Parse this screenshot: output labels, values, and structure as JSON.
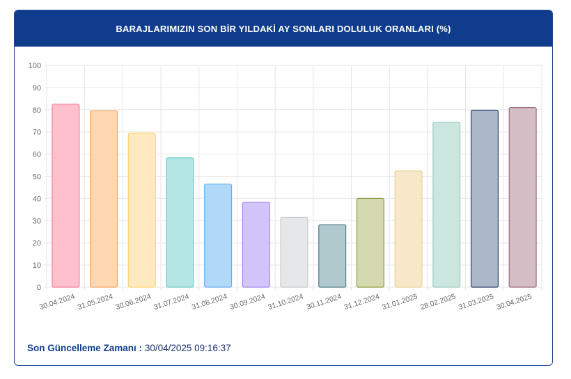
{
  "header": {
    "title": "BARAJLARIMIZIN SON BİR YILDAKİ AY SONLARI DOLULUK ORANLARI (%)"
  },
  "chart_data": {
    "type": "bar",
    "title": "BARAJLARIMIZIN SON BİR YILDAKİ AY SONLARI DOLULUK ORANLARI (%)",
    "xlabel": "",
    "ylabel": "",
    "ylim": [
      0,
      100
    ],
    "yticks": [
      "0",
      "10",
      "20",
      "30",
      "40",
      "50",
      "60",
      "70",
      "80",
      "90",
      "100"
    ],
    "grid": true,
    "categories": [
      "30.04.2024",
      "31.05.2024",
      "30.06.2024",
      "31.07.2024",
      "31.08.2024",
      "30.09.2024",
      "31.10.2024",
      "30.11.2024",
      "31.12.2024",
      "31.01.2025",
      "28.02.2025",
      "31.03.2025",
      "30.04.2025"
    ],
    "values": [
      82.5,
      79.5,
      69.5,
      58.3,
      46.5,
      38.3,
      31.5,
      28.2,
      40.0,
      52.4,
      74.4,
      79.8,
      81.0
    ],
    "fills": [
      "#ffc0cd",
      "#fdd8b3",
      "#feeac0",
      "#b3e6e4",
      "#b0d8f8",
      "#d3c4f9",
      "#e6e7e9",
      "#b0c9cd",
      "#d4d9b2",
      "#f6e8c8",
      "#cae6de",
      "#abb8c9",
      "#d4bdc4"
    ],
    "strokes": [
      "#f37c98",
      "#f6a75f",
      "#fbd270",
      "#6fcbc9",
      "#6aaef0",
      "#a683f3",
      "#c6c8cc",
      "#4e7f86",
      "#8f9a3e",
      "#ead29c",
      "#9ccfbf",
      "#2f416a",
      "#9a6c7b"
    ]
  },
  "footer": {
    "label": "Son Güncelleme Zamanı :",
    "value": "30/04/2025 09:16:37"
  }
}
